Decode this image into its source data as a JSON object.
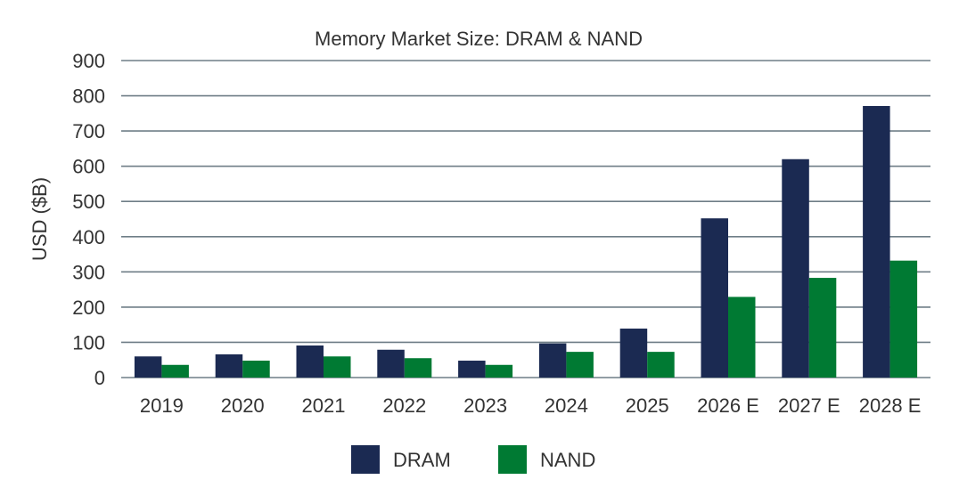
{
  "chart_data": {
    "type": "bar",
    "title": "Memory Market Size: DRAM & NAND",
    "xlabel": "",
    "ylabel": "USD ($B)",
    "ylim": [
      0,
      900
    ],
    "yticks": [
      0,
      100,
      200,
      300,
      400,
      500,
      600,
      700,
      800,
      900
    ],
    "grid": true,
    "legend": "bottom-center",
    "categories": [
      "2019",
      "2020",
      "2021",
      "2022",
      "2023",
      "2024",
      "2025",
      "2026 E",
      "2027 E",
      "2028 E"
    ],
    "series": [
      {
        "name": "DRAM",
        "color": "#1b2a52",
        "values": [
          60,
          66,
          91,
          79,
          48,
          97,
          139,
          452,
          620,
          771
        ]
      },
      {
        "name": "NAND",
        "color": "#007a33",
        "values": [
          36,
          48,
          60,
          55,
          36,
          73,
          73,
          229,
          283,
          332
        ]
      }
    ]
  }
}
